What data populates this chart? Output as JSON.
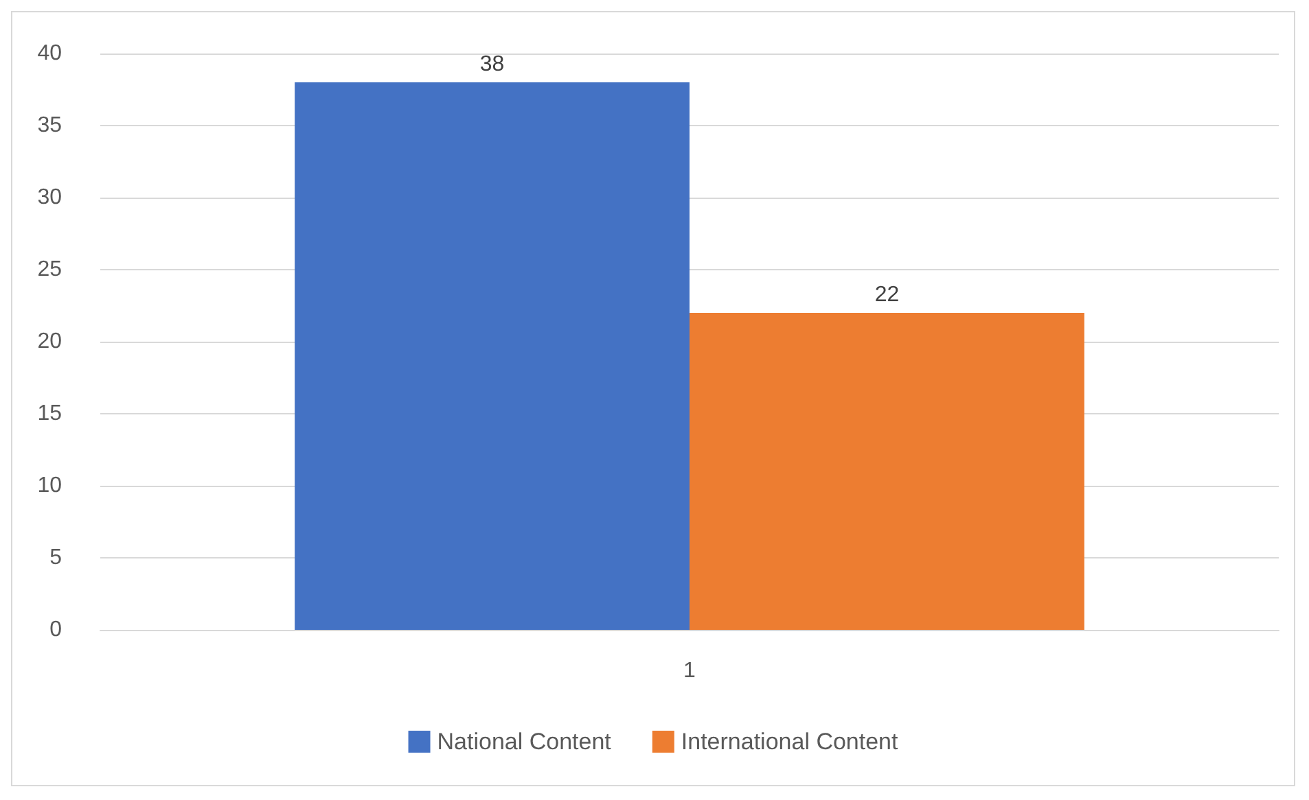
{
  "chart_data": {
    "type": "bar",
    "categories": [
      "1"
    ],
    "series": [
      {
        "name": "National Content",
        "color": "#4472c4",
        "values": [
          38
        ]
      },
      {
        "name": "International Content",
        "color": "#ed7d31",
        "values": [
          22
        ]
      }
    ],
    "ylim": [
      0,
      40
    ],
    "yticks": [
      0,
      5,
      10,
      15,
      20,
      25,
      30,
      35,
      40
    ],
    "grid": "y",
    "legend": "bottom",
    "data_labels": true
  }
}
